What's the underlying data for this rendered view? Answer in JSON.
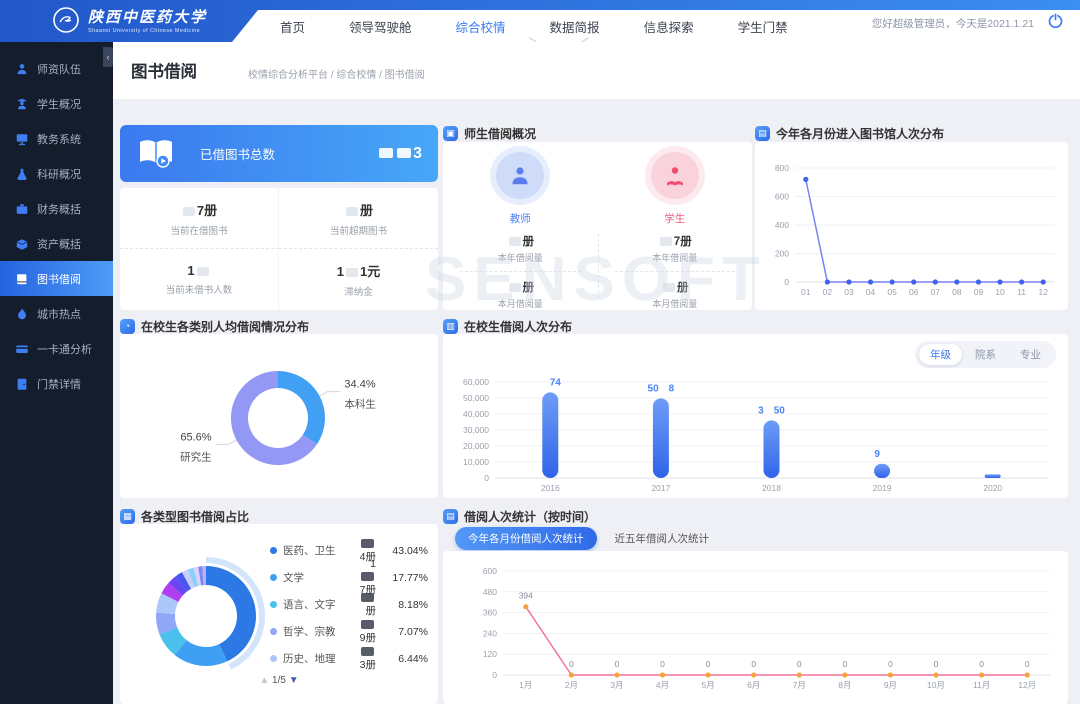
{
  "header": {
    "logo": {
      "name": "陕西中医药大学",
      "name_en": "Shaanxi University of Chinese Medicine"
    },
    "nav": [
      {
        "label": "首页",
        "active": false
      },
      {
        "label": "领导驾驶舱",
        "active": false
      },
      {
        "label": "综合校情",
        "active": true
      },
      {
        "label": "数据简报",
        "active": false
      },
      {
        "label": "信息探索",
        "active": false
      },
      {
        "label": "学生门禁",
        "active": false
      }
    ],
    "greeting": "您好超级管理员，今天是2021.1.21"
  },
  "sidebar": {
    "items": [
      {
        "label": "师资队伍",
        "icon": "faculty",
        "active": false
      },
      {
        "label": "学生概况",
        "icon": "student",
        "active": false
      },
      {
        "label": "教务系统",
        "icon": "monitor",
        "active": false
      },
      {
        "label": "科研概况",
        "icon": "flask",
        "active": false
      },
      {
        "label": "财务概括",
        "icon": "briefcase",
        "active": false
      },
      {
        "label": "资产概括",
        "icon": "box",
        "active": false
      },
      {
        "label": "图书借阅",
        "icon": "book",
        "active": true
      },
      {
        "label": "城市热点",
        "icon": "flame",
        "active": false
      },
      {
        "label": "一卡通分析",
        "icon": "card",
        "active": false
      },
      {
        "label": "门禁详情",
        "icon": "door",
        "active": false
      }
    ]
  },
  "page": {
    "title": "图书借阅",
    "breadcrumb": "校情综合分析平台 / 综合校情 / 图书借阅"
  },
  "watermark": "SENSOFT",
  "summary": {
    "banner": {
      "label": "已借图书总数",
      "value": "▮▮3"
    },
    "stats": [
      {
        "value": "▮7册",
        "label": "当前在借图书"
      },
      {
        "value": "▮册",
        "label": "当前超期图书"
      },
      {
        "value": "1▮",
        "label": "当前未借书人数"
      },
      {
        "value": "1▮1元",
        "label": "滞纳金"
      }
    ]
  },
  "teacher_student": {
    "title": "师生借阅概况",
    "groups": [
      {
        "name": "教师",
        "theme": "blue",
        "stats": [
          {
            "value": "▮册",
            "label": "本年借阅量"
          },
          {
            "value": "▮册",
            "label": "本月借阅量"
          }
        ]
      },
      {
        "name": "学生",
        "theme": "pink",
        "stats": [
          {
            "value": "▮7册",
            "label": "本年借阅量"
          },
          {
            "value": "▮册",
            "label": "本月借阅量"
          }
        ]
      }
    ]
  },
  "sections": {
    "ts": {
      "title": "师生借阅概况",
      "icon": "▣"
    },
    "entries": {
      "title": "今年各月份进入图书馆人次分布",
      "icon": "▤"
    },
    "percapita": {
      "title": "在校生各类别人均借阅情况分布",
      "icon": "◔"
    },
    "borrow_dist": {
      "title": "在校生借阅人次分布",
      "icon": "▥"
    },
    "book_types": {
      "title": "各类型图书借阅占比",
      "icon": "▦",
      "pagination": {
        "up": "▲",
        "current": "1/5",
        "down": "▼"
      }
    },
    "by_time": {
      "title": "借阅人次统计（按时间）",
      "icon": "▤",
      "buttons": [
        {
          "label": "今年各月份借阅人次统计",
          "active": true
        },
        {
          "label": "近五年借阅人次统计",
          "active": false
        }
      ]
    }
  },
  "chart_data": [
    {
      "id": "entries",
      "type": "line",
      "title": "今年各月份进入图书馆人次分布",
      "x": [
        "01",
        "02",
        "03",
        "04",
        "05",
        "06",
        "07",
        "08",
        "09",
        "10",
        "11",
        "12"
      ],
      "values": [
        720,
        0,
        0,
        0,
        0,
        0,
        0,
        0,
        0,
        0,
        0,
        0
      ],
      "ylim": [
        0,
        800
      ],
      "yticks": [
        0,
        200,
        400,
        600,
        800
      ],
      "line_color": "#7b81f2",
      "point_color": "#3f63ee",
      "grid": true,
      "show_point_labels": false
    },
    {
      "id": "percapita",
      "type": "pie",
      "title": "在校生各类别人均借阅情况分布",
      "slices": [
        {
          "label": "本科生",
          "value": 34.4,
          "display": "34.4%",
          "color": "#41a0f3"
        },
        {
          "label": "研究生",
          "value": 65.6,
          "display": "65.6%",
          "color": "#9298f4"
        }
      ]
    },
    {
      "id": "borrow_dist",
      "type": "bar",
      "title": "在校生借阅人次分布",
      "tabs": [
        "年级",
        "院系",
        "专业"
      ],
      "active_tab": "年级",
      "categories": [
        "2016",
        "2017",
        "2018",
        "2019",
        "2020"
      ],
      "values": [
        53500,
        49800,
        36000,
        8800,
        2300
      ],
      "labels": [
        "▮74",
        "50▮8",
        "3▮50",
        "9▮",
        "▮"
      ],
      "ylim": [
        0,
        60000
      ],
      "yticks": [
        0,
        10000,
        20000,
        30000,
        40000,
        50000,
        60000
      ],
      "bar_color_top": "#6f9cf7",
      "bar_color_bottom": "#2f64e9",
      "label_color": "#4a86f5",
      "grid": true
    },
    {
      "id": "book_types",
      "type": "pie",
      "title": "各类型图书借阅占比",
      "legend": [
        {
          "label": "医药、卫生",
          "count": "▮4册",
          "pct": "43.04%",
          "color": "#2c78e4"
        },
        {
          "label": "文学",
          "count": "1▮7册",
          "pct": "17.77%",
          "color": "#3f9ff2"
        },
        {
          "label": "语言、文字",
          "count": "▮册",
          "pct": "8.18%",
          "color": "#49c0ee"
        },
        {
          "label": "哲学、宗教",
          "count": "▮9册",
          "pct": "7.07%",
          "color": "#8fa7f6"
        },
        {
          "label": "历史、地理",
          "count": "▮3册",
          "pct": "6.44%",
          "color": "#abc7f9"
        }
      ],
      "slices": [
        {
          "label": "医药、卫生",
          "value": 43.04,
          "color": "#2c78e4"
        },
        {
          "label": "文学",
          "value": 17.77,
          "color": "#3f9ff2"
        },
        {
          "label": "语言、文字",
          "value": 8.18,
          "color": "#49c0ee"
        },
        {
          "label": "哲学、宗教",
          "value": 7.07,
          "color": "#8fa7f6"
        },
        {
          "label": "历史、地理",
          "value": 6.44,
          "color": "#abc7f9"
        },
        {
          "label": "",
          "value": 4.0,
          "color": "#b03ff0"
        },
        {
          "label": "",
          "value": 3.0,
          "color": "#6a46f2"
        },
        {
          "label": "",
          "value": 2.5,
          "color": "#4558ee"
        },
        {
          "label": "",
          "value": 2.0,
          "color": "#c9cdfb"
        },
        {
          "label": "",
          "value": 2.0,
          "color": "#8ad1f7"
        },
        {
          "label": "",
          "value": 1.5,
          "color": "#d9d3fc"
        },
        {
          "label": "",
          "value": 1.3,
          "color": "#7b88f0"
        },
        {
          "label": "",
          "value": 1.2,
          "color": "#b9aef9"
        }
      ],
      "halo_color": "#d3e5fb",
      "pagination": "1/5"
    },
    {
      "id": "by_time",
      "type": "line",
      "title": "借阅人次统计（按时间）",
      "x": [
        "1月",
        "2月",
        "3月",
        "4月",
        "5月",
        "6月",
        "7月",
        "8月",
        "9月",
        "10月",
        "11月",
        "12月"
      ],
      "values": [
        394,
        0,
        0,
        0,
        0,
        0,
        0,
        0,
        0,
        0,
        0,
        0
      ],
      "labels": [
        "394",
        "0",
        "0",
        "0",
        "0",
        "0",
        "0",
        "0",
        "0",
        "0",
        "0",
        "0"
      ],
      "ylim": [
        0,
        600
      ],
      "yticks": [
        0,
        120,
        240,
        360,
        480,
        600
      ],
      "line_color": "#f2729e",
      "point_color": "#f5a43c",
      "grid": true,
      "show_point_labels": true
    }
  ]
}
